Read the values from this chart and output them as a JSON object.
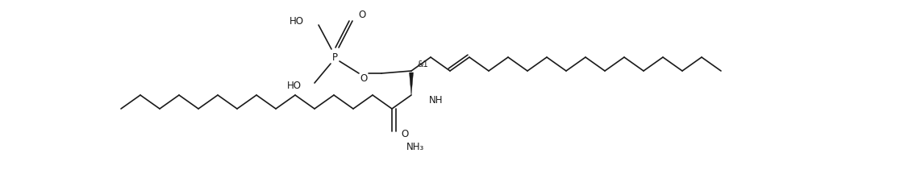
{
  "bg_color": "#ffffff",
  "line_color": "#1a1a1a",
  "text_color": "#1a1a1a",
  "line_width": 1.2,
  "fig_width": 11.16,
  "fig_height": 2.11,
  "dpi": 100,
  "xlim": [
    0,
    1116
  ],
  "ylim": [
    0,
    211
  ],
  "P_label": "P",
  "HO_top_label": "HO",
  "O_top_label": "O",
  "HO_left_label": "HO",
  "O_ester_label": "O",
  "stereo_label": "&1",
  "NH_label": "NH",
  "O_carbonyl_label": "O",
  "NH3_label": "NH₃",
  "fontsize_main": 8.5,
  "fontsize_stereo": 7.0
}
